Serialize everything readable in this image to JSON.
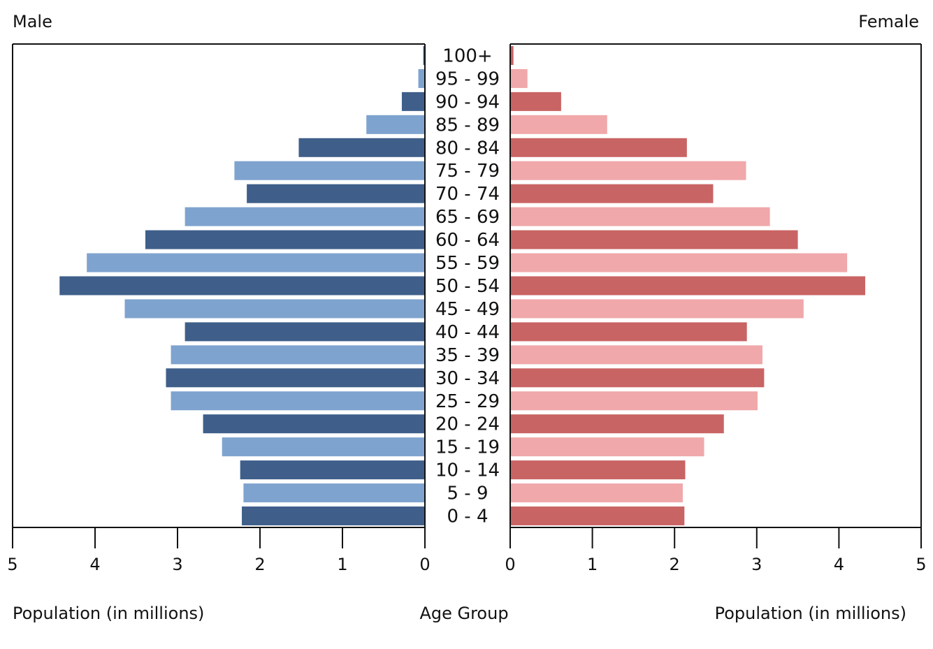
{
  "chart_data": {
    "type": "bar",
    "orientation": "horizontal-pyramid",
    "left_title": "Male",
    "right_title": "Female",
    "xlabel_left": "Population (in millions)",
    "xlabel_center": "Age Group",
    "xlabel_right": "Population (in millions)",
    "xlim": [
      0,
      5
    ],
    "xticks": [
      "0",
      "1",
      "2",
      "3",
      "4",
      "5"
    ],
    "grid": false,
    "categories": [
      "100+",
      "95 - 99",
      "90 - 94",
      "85 - 89",
      "80 - 84",
      "75 - 79",
      "70 - 74",
      "65 - 69",
      "60 - 64",
      "55 - 59",
      "50 - 54",
      "45 - 49",
      "40 - 44",
      "35 - 39",
      "30 - 34",
      "25 - 29",
      "20 - 24",
      "15 - 19",
      "10 - 14",
      "5 - 9",
      "0 - 4"
    ],
    "series": [
      {
        "name": "Male",
        "values": [
          0.02,
          0.08,
          0.28,
          0.71,
          1.53,
          2.31,
          2.16,
          2.91,
          3.39,
          4.1,
          4.43,
          3.64,
          2.91,
          3.08,
          3.14,
          3.08,
          2.69,
          2.46,
          2.24,
          2.2,
          2.22
        ]
      },
      {
        "name": "Female",
        "values": [
          0.04,
          0.21,
          0.62,
          1.18,
          2.15,
          2.87,
          2.47,
          3.16,
          3.5,
          4.1,
          4.32,
          3.57,
          2.88,
          3.07,
          3.09,
          3.01,
          2.6,
          2.36,
          2.13,
          2.1,
          2.12
        ]
      }
    ],
    "colors": {
      "male_dark": "#3f5f8a",
      "male_light": "#7fa3cf",
      "female_dark": "#c96464",
      "female_light": "#f0a8aa"
    }
  }
}
